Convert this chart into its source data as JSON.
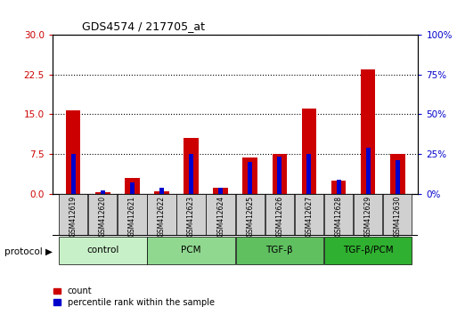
{
  "title": "GDS4574 / 217705_at",
  "samples": [
    "GSM412619",
    "GSM412620",
    "GSM412621",
    "GSM412622",
    "GSM412623",
    "GSM412624",
    "GSM412625",
    "GSM412626",
    "GSM412627",
    "GSM412628",
    "GSM412629",
    "GSM412630"
  ],
  "count_values": [
    15.8,
    0.3,
    3.0,
    0.5,
    10.5,
    1.2,
    6.8,
    7.5,
    16.0,
    2.5,
    23.5,
    7.5
  ],
  "percentile_values": [
    7.5,
    0.7,
    2.1,
    1.2,
    7.5,
    1.2,
    6.0,
    7.0,
    7.5,
    2.7,
    8.7,
    6.3
  ],
  "groups": [
    {
      "label": "control",
      "start": 0,
      "end": 3,
      "color": "#c8f0c8"
    },
    {
      "label": "PCM",
      "start": 3,
      "end": 6,
      "color": "#90d890"
    },
    {
      "label": "TGF-β",
      "start": 6,
      "end": 9,
      "color": "#60c060"
    },
    {
      "label": "TGF-β/PCM",
      "start": 9,
      "end": 12,
      "color": "#30b030"
    }
  ],
  "ylim_left": [
    0,
    30
  ],
  "ylim_right": [
    0,
    100
  ],
  "yticks_left": [
    0,
    7.5,
    15,
    22.5,
    30
  ],
  "yticks_right": [
    0,
    25,
    50,
    75,
    100
  ],
  "count_color": "#cc0000",
  "percentile_color": "#0000cc",
  "bg_color": "#ffffff",
  "sample_box_color": "#d0d0d0",
  "protocol_label": "protocol",
  "legend_count": "count",
  "legend_pct": "percentile rank within the sample",
  "red_bar_width": 0.5,
  "blue_bar_width": 0.15
}
